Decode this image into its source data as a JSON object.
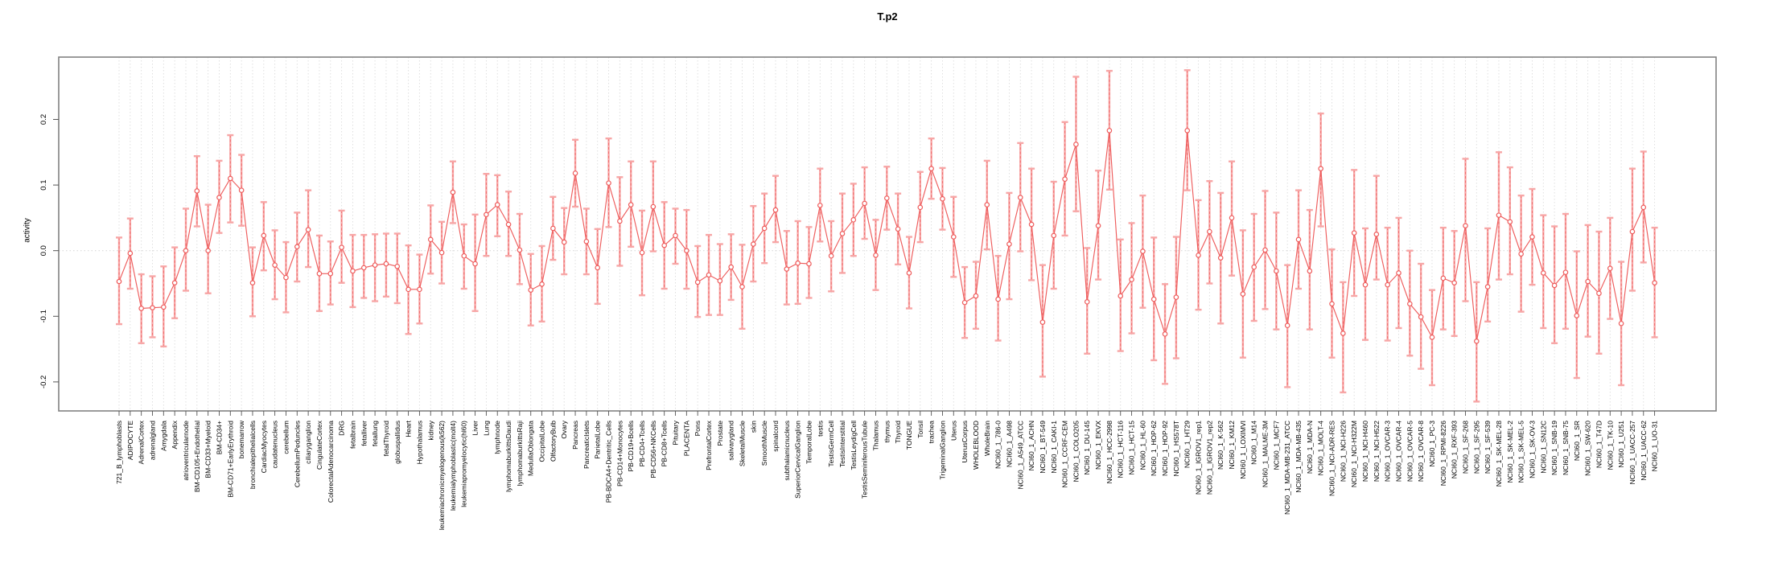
{
  "title": "T.p2",
  "ylabel": "activity",
  "chart_data": {
    "type": "line",
    "title": "T.p2",
    "xlabel": "",
    "ylabel": "activity",
    "ylim": [
      -0.25,
      0.295
    ],
    "yticks": [
      -0.2,
      -0.1,
      0.0,
      0.1,
      0.2
    ],
    "grid": "vertical dotted gridline at every category; horizontal dotted line at y=0",
    "legend_position": "none",
    "marker": "open-circle",
    "line_color": "#ee5c5c",
    "errorbar_color": "#f7a6a6",
    "box_color": "#828282",
    "gridline_color": "#dcdcdc",
    "categories": [
      "721_B_lymphoblasts",
      "ADIPOCYTE",
      "AdrenalCortex",
      "adrenalgland",
      "Amygdala",
      "Appendix",
      "atrioventricularnode",
      "BM-CD105+Endothelial",
      "BM-CD33+Myeloid",
      "BM-CD34+",
      "BM-CD71+EarlyErythroid",
      "bonemarrow",
      "bronchialepithelialcells",
      "CardiacMyocytes",
      "caudatenucleus",
      "cerebellum",
      "CerebellumPeduncles",
      "ciliaryganglion",
      "CingulateCortex",
      "ColorectalAdenocarcinoma",
      "DRG",
      "fetalbrain",
      "fetalliver",
      "fetallung",
      "fetalThyroid",
      "globuspallidus",
      "Heart",
      "Hypothalamus",
      "kidney",
      "leukemiachronicmyelogenous(k562)",
      "leukemialymphoblastic(molt4)",
      "leukemiapromyelocytic(hl60)",
      "Liver",
      "Lung",
      "lymphnode",
      "lymphomaburkittsDaudi",
      "lymphomaburkittsRaji",
      "MedullaOblongata",
      "OccipitalLobe",
      "OlfactoryBulb",
      "Ovary",
      "Pancreas",
      "PancreaticIslets",
      "ParietalLobe",
      "PB-BDCA4+Dentritic_Cells",
      "PB-CD14+Monocytes",
      "PB-CD19+Bcells",
      "PB-CD4+Tcells",
      "PB-CD56+NKCells",
      "PB-CD8+Tcells",
      "Pituitary",
      "PLACENTA",
      "Pons",
      "PrefrontalCortex",
      "Prostate",
      "salivarygland",
      "SkeletalMuscle",
      "skin",
      "SmoothMuscle",
      "spinalcord",
      "subthalamicnucleus",
      "SuperiorCervicalGanglion",
      "TemporalLobe",
      "testis",
      "TestisGermCell",
      "TestisInterstitial",
      "TestisLeydigCell",
      "TestisSeminiferousTubule",
      "Thalamus",
      "thymus",
      "Thyroid",
      "TONGUE",
      "Tonsil",
      "trachea",
      "TrigeminalGanglion",
      "Uterus",
      "UterusCorpus",
      "WHOLEBLOOD",
      "WholeBrain",
      "NCI60_1_786-0",
      "NCI60_1_A498",
      "NCI60_1_A549_ATCC",
      "NCI60_1_ACHN",
      "NCI60_1_BT-549",
      "NCI60_1_CAKI-1",
      "NCI60_1_CCRF-CEM",
      "NCI60_1_COLO205",
      "NCI60_1_DU-145",
      "NCI60_1_EKVX",
      "NCI60_1_HCC-2998",
      "NCI60_1_HCT-116",
      "NCI60_1_HCT-15",
      "NCI60_1_HL-60",
      "NCI60_1_HOP-62",
      "NCI60_1_HOP-92",
      "NCI60_1_HS578T",
      "NCI60_1_HT29",
      "NCI60_1_IGROV1_rep1",
      "NCI60_1_IGROV1_rep2",
      "NCI60_1_K-562",
      "NCI60_1_KM12",
      "NCI60_1_LOXIMVI",
      "NCI60_1_M14",
      "NCI60_1_MALME-3M",
      "NCI60_1_MCF7",
      "NCI60_1_MDA-MB-231_ATCC",
      "NCI60_1_MDA-MB-435",
      "NCI60_1_MDA-N",
      "NCI60_1_MOLT-4",
      "NCI60_1_NCI-ADR-RES",
      "NCI60_1_NCI-H226",
      "NCI60_1_NCI-H322M",
      "NCI60_1_NCI-H460",
      "NCI60_1_NCI-H522",
      "NCI60_1_OVCAR-3",
      "NCI60_1_OVCAR-4",
      "NCI60_1_OVCAR-5",
      "NCI60_1_OVCAR-8",
      "NCI60_1_PC-3",
      "NCI60_1_RPMI-8226",
      "NCI60_1_RXF-393",
      "NCI60_1_SF-268",
      "NCI60_1_SF-295",
      "NCI60_1_SF-539",
      "NCI60_1_SK-MEL-28",
      "NCI60_1_SK-MEL-2",
      "NCI60_1_SK-MEL-5",
      "NCI60_1_SK-OV-3",
      "NCI60_1_SN12C",
      "NCI60_1_SNB-19",
      "NCI60_1_SNB-75",
      "NCI60_1_SR",
      "NCI60_1_SW-620",
      "NCI60_1_T47D",
      "NCI60_1_TK-10",
      "NCI60_1_U251",
      "NCI60_1_UACC-257",
      "NCI60_1_UACC-62",
      "NCI60_1_UO-31"
    ],
    "values": [
      -0.047,
      -0.004,
      -0.088,
      -0.087,
      -0.086,
      -0.049,
      0.0,
      0.091,
      0.0,
      0.081,
      0.11,
      0.092,
      -0.049,
      0.023,
      -0.022,
      -0.041,
      0.006,
      0.032,
      -0.035,
      -0.035,
      0.005,
      -0.031,
      -0.026,
      -0.022,
      -0.02,
      -0.024,
      -0.059,
      -0.059,
      0.017,
      -0.003,
      0.089,
      -0.008,
      -0.02,
      0.055,
      0.07,
      0.04,
      0.001,
      -0.06,
      -0.051,
      0.034,
      0.013,
      0.118,
      0.014,
      -0.026,
      0.103,
      0.045,
      0.07,
      -0.003,
      0.067,
      0.008,
      0.023,
      0.0,
      -0.048,
      -0.037,
      -0.046,
      -0.025,
      -0.055,
      0.01,
      0.034,
      0.062,
      -0.028,
      -0.019,
      -0.02,
      0.069,
      -0.008,
      0.026,
      0.047,
      0.072,
      -0.007,
      0.08,
      0.033,
      -0.034,
      0.066,
      0.125,
      0.079,
      0.021,
      -0.079,
      -0.069,
      0.07,
      -0.074,
      0.01,
      0.081,
      0.04,
      -0.109,
      0.023,
      0.109,
      0.162,
      -0.078,
      0.038,
      0.183,
      -0.069,
      -0.044,
      -0.001,
      -0.074,
      -0.127,
      -0.071,
      0.183,
      -0.007,
      0.029,
      -0.011,
      0.05,
      -0.066,
      -0.025,
      0.001,
      -0.031,
      -0.114,
      0.017,
      -0.031,
      0.125,
      -0.081,
      -0.126,
      0.027,
      -0.052,
      0.025,
      -0.052,
      -0.034,
      -0.081,
      -0.101,
      -0.132,
      -0.042,
      -0.049,
      0.038,
      -0.138,
      -0.055,
      0.054,
      0.044,
      -0.005,
      0.021,
      -0.034,
      -0.053,
      -0.033,
      -0.099,
      -0.047,
      -0.065,
      -0.027,
      -0.111,
      0.029,
      0.066,
      -0.049
    ],
    "ci_low": [
      -0.112,
      -0.058,
      -0.141,
      -0.132,
      -0.146,
      -0.103,
      -0.061,
      0.037,
      -0.065,
      0.027,
      0.043,
      0.038,
      -0.1,
      -0.03,
      -0.074,
      -0.094,
      -0.047,
      -0.025,
      -0.092,
      -0.082,
      -0.049,
      -0.086,
      -0.072,
      -0.077,
      -0.07,
      -0.08,
      -0.127,
      -0.111,
      -0.035,
      -0.05,
      0.042,
      -0.058,
      -0.092,
      -0.008,
      0.022,
      -0.008,
      -0.051,
      -0.114,
      -0.108,
      -0.014,
      -0.036,
      0.067,
      -0.036,
      -0.081,
      0.036,
      -0.023,
      0.006,
      -0.068,
      -0.001,
      -0.058,
      -0.02,
      -0.058,
      -0.101,
      -0.098,
      -0.098,
      -0.075,
      -0.119,
      -0.047,
      -0.019,
      0.013,
      -0.082,
      -0.081,
      -0.072,
      0.014,
      -0.062,
      -0.034,
      -0.008,
      0.018,
      -0.06,
      0.032,
      -0.021,
      -0.088,
      0.013,
      0.079,
      0.032,
      -0.04,
      -0.133,
      -0.119,
      0.002,
      -0.137,
      -0.074,
      -0.001,
      -0.045,
      -0.192,
      -0.058,
      0.023,
      0.06,
      -0.157,
      -0.044,
      0.093,
      -0.153,
      -0.126,
      -0.087,
      -0.167,
      -0.203,
      -0.164,
      0.092,
      -0.09,
      -0.05,
      -0.111,
      -0.038,
      -0.163,
      -0.107,
      -0.089,
      -0.12,
      -0.208,
      -0.058,
      -0.12,
      0.037,
      -0.163,
      -0.216,
      -0.069,
      -0.136,
      -0.044,
      -0.137,
      -0.118,
      -0.16,
      -0.18,
      -0.205,
      -0.12,
      -0.13,
      -0.077,
      -0.23,
      -0.108,
      -0.044,
      -0.036,
      -0.093,
      -0.052,
      -0.118,
      -0.141,
      -0.119,
      -0.194,
      -0.131,
      -0.157,
      -0.104,
      -0.205,
      -0.061,
      -0.018,
      -0.132
    ],
    "ci_high": [
      0.02,
      0.049,
      -0.036,
      -0.039,
      -0.024,
      0.005,
      0.064,
      0.144,
      0.07,
      0.137,
      0.176,
      0.146,
      0.005,
      0.074,
      0.031,
      0.013,
      0.058,
      0.092,
      0.023,
      0.014,
      0.061,
      0.024,
      0.024,
      0.025,
      0.026,
      0.026,
      0.008,
      -0.006,
      0.069,
      0.044,
      0.136,
      0.04,
      0.055,
      0.117,
      0.115,
      0.09,
      0.056,
      -0.005,
      0.007,
      0.082,
      0.065,
      0.169,
      0.064,
      0.033,
      0.171,
      0.112,
      0.136,
      0.061,
      0.136,
      0.074,
      0.064,
      0.062,
      0.007,
      0.024,
      0.01,
      0.025,
      0.009,
      0.068,
      0.087,
      0.114,
      0.03,
      0.045,
      0.036,
      0.125,
      0.045,
      0.087,
      0.102,
      0.127,
      0.047,
      0.128,
      0.087,
      0.021,
      0.12,
      0.171,
      0.126,
      0.082,
      -0.025,
      -0.017,
      0.137,
      -0.008,
      0.088,
      0.164,
      0.125,
      -0.022,
      0.105,
      0.196,
      0.265,
      0.004,
      0.122,
      0.274,
      0.017,
      0.042,
      0.084,
      0.02,
      -0.051,
      0.021,
      0.275,
      0.077,
      0.106,
      0.088,
      0.136,
      0.031,
      0.056,
      0.091,
      0.058,
      -0.022,
      0.092,
      0.062,
      0.209,
      0.002,
      -0.048,
      0.123,
      0.034,
      0.114,
      0.035,
      0.05,
      0.0,
      -0.02,
      -0.06,
      0.035,
      0.03,
      0.14,
      -0.048,
      0.034,
      0.15,
      0.127,
      0.084,
      0.094,
      0.054,
      0.037,
      0.056,
      -0.001,
      0.039,
      0.029,
      0.05,
      -0.017,
      0.125,
      0.151,
      0.035
    ]
  }
}
